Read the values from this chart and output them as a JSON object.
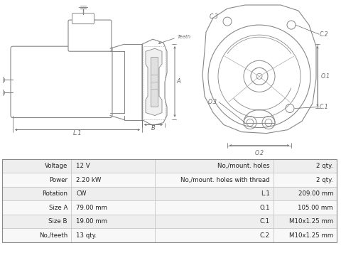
{
  "table_rows": [
    [
      "Voltage",
      "12 V",
      "No,/mount. holes",
      "2 qty."
    ],
    [
      "Power",
      "2.20 kW",
      "No,/mount. holes with thread",
      "2 qty."
    ],
    [
      "Rotation",
      "CW",
      "L.1",
      "209.00 mm"
    ],
    [
      "Size A",
      "79.00 mm",
      "O.1",
      "105.00 mm"
    ],
    [
      "Size B",
      "19.00 mm",
      "C.1",
      "M10x1.25 mm"
    ],
    [
      "No,/teeth",
      "13 qty.",
      "C.2",
      "M10x1.25 mm"
    ]
  ],
  "bg_color": "#ffffff",
  "table_row_bg1": "#eeeeee",
  "table_row_bg2": "#f8f8f8",
  "border_color": "#bbbbbb",
  "text_color": "#222222",
  "line_color": "#888888",
  "dim_color": "#666666"
}
